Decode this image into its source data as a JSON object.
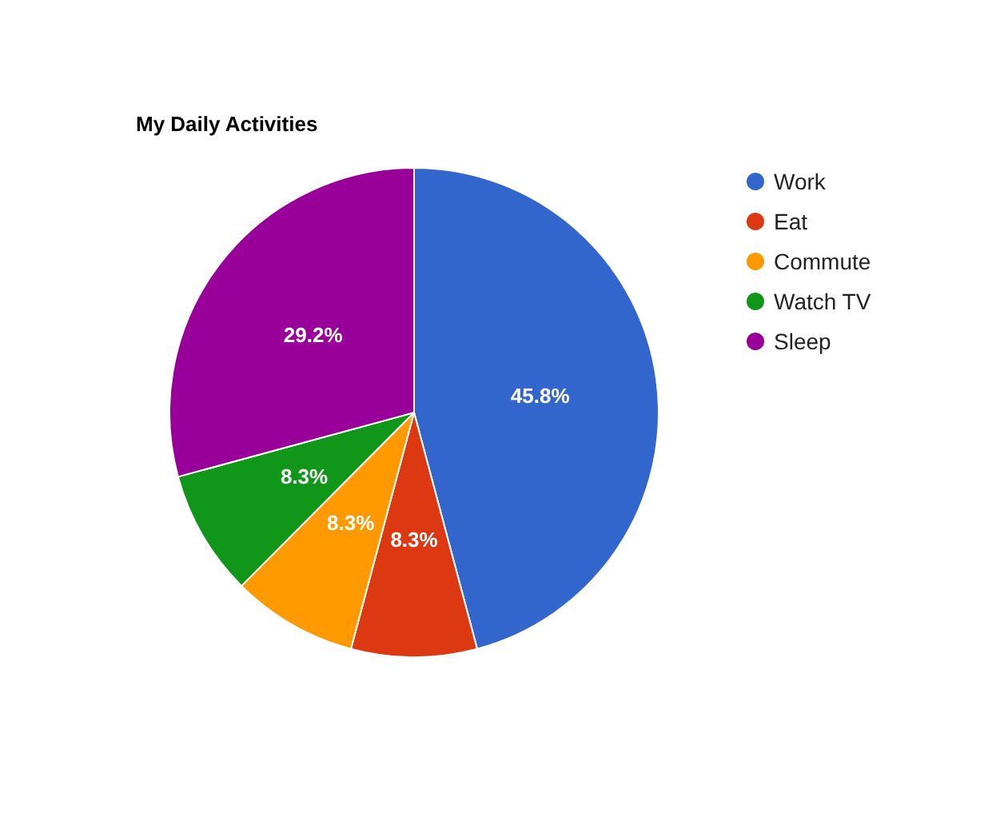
{
  "chart_data": {
    "type": "pie",
    "title": "My Daily Activities",
    "categories": [
      "Work",
      "Eat",
      "Commute",
      "Watch TV",
      "Sleep"
    ],
    "values": [
      45.8,
      8.3,
      8.3,
      8.3,
      29.2
    ],
    "value_labels": [
      "45.8%",
      "8.3%",
      "8.3%",
      "8.3%",
      "29.2%"
    ],
    "colors": [
      "#3366cc",
      "#dc3912",
      "#ff9900",
      "#109618",
      "#990099"
    ],
    "legend": "right"
  }
}
